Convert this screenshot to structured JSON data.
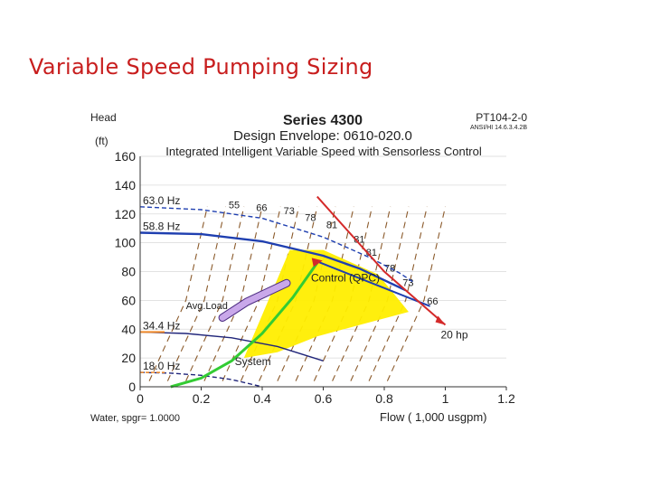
{
  "slide": {
    "title": "Variable Speed Pumping Sizing"
  },
  "chart_data": {
    "type": "line",
    "title": "Series 4300",
    "subtitle": "Design Envelope: 0610-020.0",
    "subtitle2": "Integrated Intelligent Variable Speed with Sensorless Control",
    "doc_id": "PT104-2-0",
    "doc_sub": "ANSI/HI 14.6.3.4.2B",
    "ylabel_top": "Head",
    "ylabel_unit": "(ft)",
    "xlabel": "Flow ( 1,000 usgpm)",
    "fluid_note": "Water, spgr= 1.0000",
    "xlim": [
      0,
      1.2
    ],
    "ylim": [
      0,
      160
    ],
    "xticks": [
      "0",
      "0.2",
      "0.4",
      "0.6",
      "0.8",
      "1",
      "1.2"
    ],
    "yticks": [
      "0",
      "20",
      "40",
      "60",
      "80",
      "100",
      "120",
      "140",
      "160"
    ],
    "colors": {
      "yellow": "#ffee00",
      "blue": "#1f3fb0",
      "navy": "#20257a",
      "red": "#d42a2a",
      "green": "#33cc33",
      "brown": "#8b5a2b",
      "purple": "#c9a8ea",
      "orange": "#f08a2a"
    },
    "envelope_polygon": [
      [
        0.34,
        20
      ],
      [
        0.49,
        95
      ],
      [
        0.6,
        95
      ],
      [
        0.78,
        78
      ],
      [
        0.88,
        52
      ],
      [
        0.72,
        43
      ],
      [
        0.58,
        35
      ],
      [
        0.45,
        24
      ]
    ],
    "speed_curves": [
      {
        "name": "63.0 Hz",
        "style": "dashed",
        "points": [
          [
            0,
            125
          ],
          [
            0.2,
            123
          ],
          [
            0.4,
            117
          ],
          [
            0.6,
            104
          ],
          [
            0.75,
            90
          ],
          [
            0.85,
            79
          ],
          [
            0.9,
            72
          ]
        ]
      },
      {
        "name": "58.8 Hz",
        "style": "solid",
        "points": [
          [
            0,
            107
          ],
          [
            0.2,
            106
          ],
          [
            0.4,
            101
          ],
          [
            0.6,
            91
          ],
          [
            0.72,
            82
          ],
          [
            0.8,
            74
          ],
          [
            0.87,
            67
          ]
        ]
      },
      {
        "name": "34.4 Hz",
        "style": "solid",
        "points": [
          [
            0,
            38
          ],
          [
            0.15,
            37
          ],
          [
            0.3,
            34
          ],
          [
            0.45,
            28
          ],
          [
            0.6,
            18
          ]
        ]
      },
      {
        "name": "18.0 Hz",
        "style": "dashed",
        "points": [
          [
            0,
            10
          ],
          [
            0.1,
            9.5
          ],
          [
            0.2,
            8
          ],
          [
            0.3,
            5
          ],
          [
            0.4,
            0
          ]
        ]
      }
    ],
    "system_curve": {
      "name": "System",
      "points": [
        [
          0.1,
          0
        ],
        [
          0.2,
          6
        ],
        [
          0.3,
          18
        ],
        [
          0.4,
          37
        ],
        [
          0.5,
          62
        ],
        [
          0.58,
          86
        ]
      ]
    },
    "control_curve": {
      "name": "Control (QPC)",
      "points": [
        [
          0.58,
          87
        ],
        [
          0.95,
          56
        ]
      ]
    },
    "avg_load_band": {
      "name": "Avg.Load",
      "points": [
        [
          0.27,
          48
        ],
        [
          0.35,
          59
        ],
        [
          0.42,
          66
        ],
        [
          0.48,
          72
        ]
      ]
    },
    "max_power_line": {
      "name": "20 hp",
      "points": [
        [
          0.58,
          132
        ],
        [
          0.8,
          80
        ],
        [
          1.0,
          43
        ]
      ]
    },
    "efficiency_labels": [
      {
        "text": "55",
        "x": 0.29,
        "y": 124
      },
      {
        "text": "66",
        "x": 0.38,
        "y": 122
      },
      {
        "text": "73",
        "x": 0.47,
        "y": 120
      },
      {
        "text": "78",
        "x": 0.54,
        "y": 115
      },
      {
        "text": "81",
        "x": 0.61,
        "y": 110
      },
      {
        "text": "81",
        "x": 0.7,
        "y": 100
      },
      {
        "text": "81",
        "x": 0.74,
        "y": 91
      },
      {
        "text": "78",
        "x": 0.8,
        "y": 80
      },
      {
        "text": "73",
        "x": 0.86,
        "y": 70
      },
      {
        "text": "66",
        "x": 0.94,
        "y": 57
      }
    ]
  }
}
